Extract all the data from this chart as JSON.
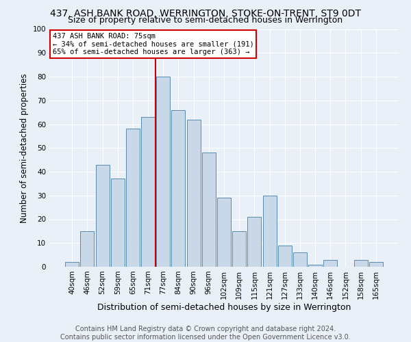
{
  "title1": "437, ASH BANK ROAD, WERRINGTON, STOKE-ON-TRENT, ST9 0DT",
  "title2": "Size of property relative to semi-detached houses in Werrington",
  "xlabel": "Distribution of semi-detached houses by size in Werrington",
  "ylabel": "Number of semi-detached properties",
  "footer": "Contains HM Land Registry data © Crown copyright and database right 2024.\nContains public sector information licensed under the Open Government Licence v3.0.",
  "bar_labels": [
    "40sqm",
    "46sqm",
    "52sqm",
    "59sqm",
    "65sqm",
    "71sqm",
    "77sqm",
    "84sqm",
    "90sqm",
    "96sqm",
    "102sqm",
    "109sqm",
    "115sqm",
    "121sqm",
    "127sqm",
    "133sqm",
    "140sqm",
    "146sqm",
    "152sqm",
    "158sqm",
    "165sqm"
  ],
  "bar_values": [
    2,
    15,
    43,
    37,
    58,
    63,
    80,
    66,
    62,
    48,
    29,
    15,
    21,
    30,
    9,
    6,
    1,
    3,
    0,
    3,
    2
  ],
  "bar_color": "#c8d8e8",
  "bar_edge_color": "#5a8ab0",
  "vline_x_idx": 6,
  "vline_label": "437 ASH BANK ROAD: 75sqm",
  "annotation_line1": "← 34% of semi-detached houses are smaller (191)",
  "annotation_line2": "65% of semi-detached houses are larger (363) →",
  "annotation_box_color": "#ffffff",
  "annotation_box_edge": "#cc0000",
  "vline_color": "#cc0000",
  "ylim": [
    0,
    100
  ],
  "yticks": [
    0,
    10,
    20,
    30,
    40,
    50,
    60,
    70,
    80,
    90,
    100
  ],
  "bg_color": "#eaf0f8",
  "plot_bg_color": "#eaf0f8",
  "grid_color": "#ffffff",
  "title1_fontsize": 10,
  "title2_fontsize": 9,
  "axis_label_fontsize": 8.5,
  "tick_fontsize": 7.5,
  "footer_fontsize": 7,
  "annotation_fontsize": 7.5
}
